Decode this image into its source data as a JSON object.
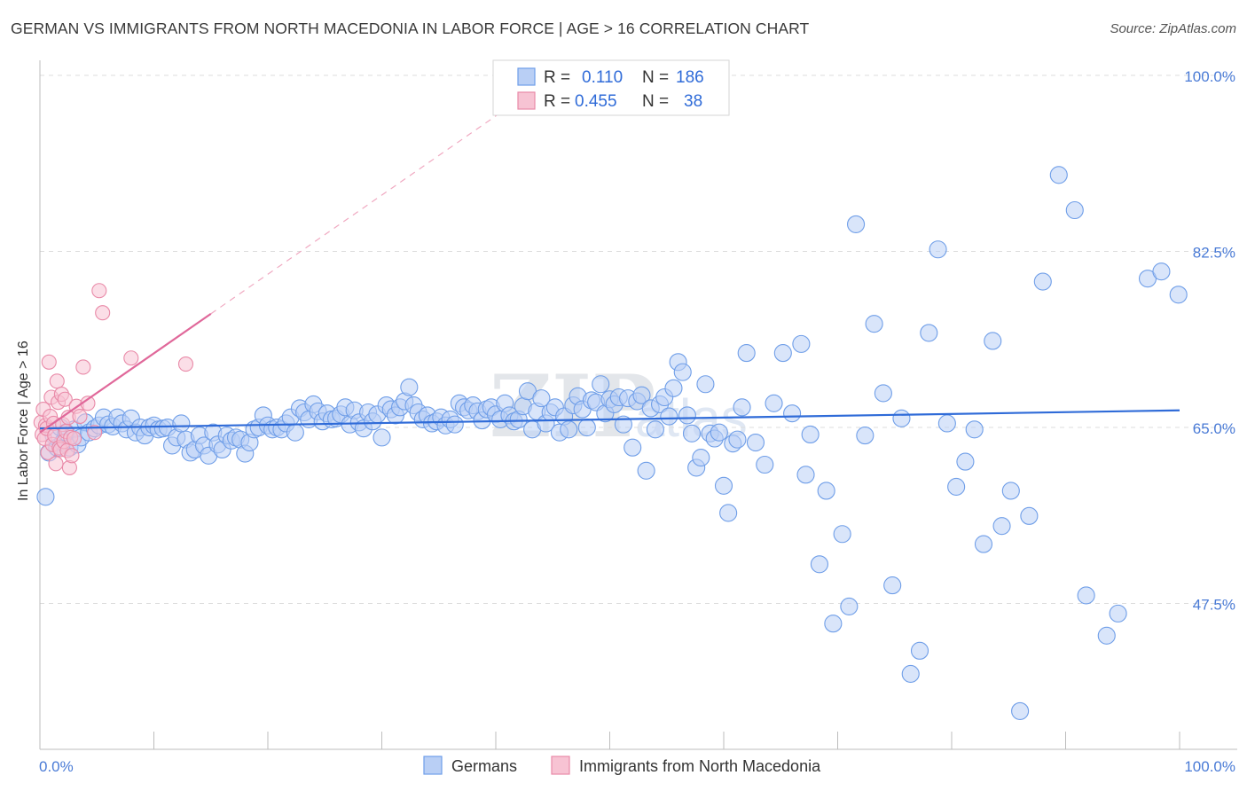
{
  "title": "GERMAN VS IMMIGRANTS FROM NORTH MACEDONIA IN LABOR FORCE | AGE > 16 CORRELATION CHART",
  "source": "Source: ZipAtlas.com",
  "watermark": {
    "zip": "ZIP",
    "atlas": "atlas"
  },
  "colors": {
    "blue": "#6f9ee8",
    "blue_fill": "#b9cff5",
    "blue_line": "#2f6bd8",
    "pink": "#e98aa8",
    "pink_fill": "#f7c3d3",
    "pink_line": "#e0689a"
  },
  "legend_top": {
    "rows": [
      {
        "r_label": "R =",
        "r_value": "0.110",
        "n_label": "N =",
        "n_value": "186"
      },
      {
        "r_label": "R =",
        "r_value": "0.455",
        "n_label": "N =",
        "n_value": "38"
      }
    ]
  },
  "legend_bottom": [
    "Germans",
    "Immigrants from North Macedonia"
  ],
  "chart_data": {
    "type": "scatter",
    "title": "GERMAN VS IMMIGRANTS FROM NORTH MACEDONIA IN LABOR FORCE | AGE > 16 CORRELATION CHART",
    "xlabel": "",
    "ylabel": "In Labor Force | Age > 16",
    "x_tick_labels": [
      "0.0%",
      "100.0%"
    ],
    "y_tick_labels": [
      "100.0%",
      "82.5%",
      "65.0%",
      "47.5%"
    ],
    "y_ticks": [
      100.0,
      82.5,
      65.0,
      47.5
    ],
    "xlim": [
      0,
      100
    ],
    "ylim": [
      33.0,
      101.5
    ],
    "grid": "horizontal dashed",
    "series": [
      {
        "name": "Germans",
        "R": 0.11,
        "N": 186,
        "trend": {
          "x": [
            0,
            100
          ],
          "y": [
            64.9,
            66.7
          ]
        },
        "points": [
          [
            0.5,
            58.1
          ],
          [
            0.8,
            62.5
          ],
          [
            1.2,
            64.2
          ],
          [
            1.5,
            63.0
          ],
          [
            1.8,
            65.0
          ],
          [
            2.0,
            63.5
          ],
          [
            2.3,
            64.5
          ],
          [
            2.6,
            63.0
          ],
          [
            3.0,
            64.8
          ],
          [
            3.3,
            63.3
          ],
          [
            3.6,
            64.0
          ],
          [
            4.0,
            65.5
          ],
          [
            4.3,
            64.5
          ],
          [
            4.8,
            64.9
          ],
          [
            5.2,
            65.2
          ],
          [
            5.6,
            66.0
          ],
          [
            6.0,
            65.3
          ],
          [
            6.4,
            65.1
          ],
          [
            6.8,
            66.0
          ],
          [
            7.2,
            65.4
          ],
          [
            7.6,
            64.8
          ],
          [
            8.0,
            65.9
          ],
          [
            8.4,
            64.5
          ],
          [
            8.8,
            65.0
          ],
          [
            9.2,
            64.2
          ],
          [
            9.6,
            65.0
          ],
          [
            10.0,
            65.2
          ],
          [
            10.4,
            64.8
          ],
          [
            10.8,
            64.9
          ],
          [
            11.2,
            65.0
          ],
          [
            11.6,
            63.2
          ],
          [
            12.0,
            64.0
          ],
          [
            12.4,
            65.4
          ],
          [
            12.8,
            63.8
          ],
          [
            13.2,
            62.5
          ],
          [
            13.6,
            62.8
          ],
          [
            14.0,
            64.2
          ],
          [
            14.4,
            63.2
          ],
          [
            14.8,
            62.2
          ],
          [
            15.2,
            64.5
          ],
          [
            15.6,
            63.3
          ],
          [
            16.0,
            62.8
          ],
          [
            16.4,
            64.2
          ],
          [
            16.8,
            63.7
          ],
          [
            17.2,
            64.0
          ],
          [
            17.6,
            63.8
          ],
          [
            18.0,
            62.4
          ],
          [
            18.4,
            63.5
          ],
          [
            18.8,
            64.8
          ],
          [
            19.2,
            65.0
          ],
          [
            19.6,
            66.2
          ],
          [
            20.0,
            65.2
          ],
          [
            20.4,
            64.8
          ],
          [
            20.8,
            65.0
          ],
          [
            21.2,
            64.8
          ],
          [
            21.6,
            65.4
          ],
          [
            22.0,
            66.0
          ],
          [
            22.4,
            64.5
          ],
          [
            22.8,
            66.9
          ],
          [
            23.2,
            66.5
          ],
          [
            23.6,
            65.8
          ],
          [
            24.0,
            67.3
          ],
          [
            24.4,
            66.6
          ],
          [
            24.8,
            65.6
          ],
          [
            25.2,
            66.4
          ],
          [
            25.6,
            65.8
          ],
          [
            26.0,
            65.9
          ],
          [
            26.4,
            66.3
          ],
          [
            26.8,
            67.0
          ],
          [
            27.2,
            65.3
          ],
          [
            27.6,
            66.7
          ],
          [
            28.0,
            65.5
          ],
          [
            28.4,
            64.9
          ],
          [
            28.8,
            66.5
          ],
          [
            29.2,
            65.6
          ],
          [
            29.6,
            66.3
          ],
          [
            30.0,
            64.0
          ],
          [
            30.4,
            67.2
          ],
          [
            30.8,
            66.8
          ],
          [
            31.2,
            66.2
          ],
          [
            31.6,
            67.0
          ],
          [
            32.0,
            67.6
          ],
          [
            32.4,
            69.0
          ],
          [
            32.8,
            67.2
          ],
          [
            33.2,
            66.5
          ],
          [
            33.6,
            65.8
          ],
          [
            34.0,
            66.2
          ],
          [
            34.4,
            65.4
          ],
          [
            34.8,
            65.6
          ],
          [
            35.2,
            66.0
          ],
          [
            35.6,
            65.2
          ],
          [
            36.0,
            65.8
          ],
          [
            36.4,
            65.3
          ],
          [
            36.8,
            67.4
          ],
          [
            37.2,
            67.0
          ],
          [
            37.6,
            66.7
          ],
          [
            38.0,
            67.2
          ],
          [
            38.4,
            66.6
          ],
          [
            38.8,
            65.7
          ],
          [
            39.2,
            66.8
          ],
          [
            39.6,
            67.0
          ],
          [
            40.0,
            66.3
          ],
          [
            40.4,
            65.8
          ],
          [
            40.8,
            67.4
          ],
          [
            41.2,
            66.2
          ],
          [
            41.6,
            65.6
          ],
          [
            42.0,
            65.8
          ],
          [
            42.4,
            67.1
          ],
          [
            42.8,
            68.6
          ],
          [
            43.2,
            64.8
          ],
          [
            43.6,
            66.6
          ],
          [
            44.0,
            67.9
          ],
          [
            44.4,
            65.4
          ],
          [
            44.8,
            66.5
          ],
          [
            45.2,
            67.0
          ],
          [
            45.6,
            64.5
          ],
          [
            46.0,
            66.1
          ],
          [
            46.4,
            64.8
          ],
          [
            46.8,
            67.2
          ],
          [
            47.2,
            68.1
          ],
          [
            47.6,
            66.8
          ],
          [
            48.0,
            65.0
          ],
          [
            48.4,
            67.7
          ],
          [
            48.8,
            67.5
          ],
          [
            49.2,
            69.3
          ],
          [
            49.6,
            66.4
          ],
          [
            50.0,
            67.8
          ],
          [
            50.4,
            67.3
          ],
          [
            50.8,
            68.0
          ],
          [
            51.2,
            65.3
          ],
          [
            51.6,
            67.9
          ],
          [
            52.0,
            63.0
          ],
          [
            52.4,
            67.6
          ],
          [
            52.8,
            68.2
          ],
          [
            53.2,
            60.7
          ],
          [
            53.6,
            66.9
          ],
          [
            54.0,
            64.8
          ],
          [
            54.4,
            67.3
          ],
          [
            54.8,
            68.0
          ],
          [
            55.2,
            66.1
          ],
          [
            55.6,
            68.9
          ],
          [
            56.0,
            71.5
          ],
          [
            56.4,
            70.5
          ],
          [
            56.8,
            66.2
          ],
          [
            57.2,
            64.4
          ],
          [
            57.6,
            61.0
          ],
          [
            58.0,
            62.0
          ],
          [
            58.4,
            69.3
          ],
          [
            58.8,
            64.4
          ],
          [
            59.2,
            63.9
          ],
          [
            59.6,
            64.5
          ],
          [
            60.0,
            59.2
          ],
          [
            60.4,
            56.5
          ],
          [
            60.8,
            63.4
          ],
          [
            61.2,
            63.8
          ],
          [
            61.6,
            67.0
          ],
          [
            62.0,
            72.4
          ],
          [
            62.8,
            63.5
          ],
          [
            63.6,
            61.3
          ],
          [
            64.4,
            67.4
          ],
          [
            65.2,
            72.4
          ],
          [
            66.0,
            66.4
          ],
          [
            66.8,
            73.3
          ],
          [
            67.2,
            60.3
          ],
          [
            67.6,
            64.3
          ],
          [
            68.4,
            51.4
          ],
          [
            69.0,
            58.7
          ],
          [
            69.6,
            45.5
          ],
          [
            70.4,
            54.4
          ],
          [
            71.0,
            47.2
          ],
          [
            71.6,
            85.2
          ],
          [
            72.4,
            64.2
          ],
          [
            73.2,
            75.3
          ],
          [
            74.0,
            68.4
          ],
          [
            74.8,
            49.3
          ],
          [
            75.6,
            65.9
          ],
          [
            76.4,
            40.5
          ],
          [
            77.2,
            42.8
          ],
          [
            78.0,
            74.4
          ],
          [
            78.8,
            82.7
          ],
          [
            79.6,
            65.4
          ],
          [
            80.4,
            59.1
          ],
          [
            81.2,
            61.6
          ],
          [
            82.0,
            64.8
          ],
          [
            82.8,
            53.4
          ],
          [
            83.6,
            73.6
          ],
          [
            84.4,
            55.2
          ],
          [
            85.2,
            58.7
          ],
          [
            86.0,
            36.8
          ],
          [
            86.8,
            56.2
          ],
          [
            88.0,
            79.5
          ],
          [
            89.4,
            90.1
          ],
          [
            90.8,
            86.6
          ],
          [
            91.8,
            48.3
          ],
          [
            93.6,
            44.3
          ],
          [
            94.6,
            46.5
          ],
          [
            97.2,
            79.8
          ],
          [
            98.4,
            80.5
          ],
          [
            99.9,
            78.2
          ]
        ]
      },
      {
        "name": "Immigrants from North Macedonia",
        "R": 0.455,
        "N": 38,
        "trend": {
          "x": [
            0,
            15
          ],
          "y": [
            64.5,
            76.3
          ]
        },
        "points": [
          [
            0.1,
            65.5
          ],
          [
            0.2,
            64.3
          ],
          [
            0.3,
            66.8
          ],
          [
            0.4,
            63.9
          ],
          [
            0.5,
            65.2
          ],
          [
            0.6,
            64.9
          ],
          [
            0.7,
            62.5
          ],
          [
            0.8,
            71.5
          ],
          [
            0.9,
            66.1
          ],
          [
            1.0,
            68.0
          ],
          [
            1.1,
            63.3
          ],
          [
            1.2,
            65.4
          ],
          [
            1.3,
            64.2
          ],
          [
            1.4,
            61.4
          ],
          [
            1.5,
            69.6
          ],
          [
            1.6,
            67.5
          ],
          [
            1.7,
            63.0
          ],
          [
            1.8,
            62.8
          ],
          [
            1.9,
            68.3
          ],
          [
            2.0,
            65.3
          ],
          [
            2.1,
            63.6
          ],
          [
            2.2,
            67.8
          ],
          [
            2.3,
            64.6
          ],
          [
            2.4,
            62.7
          ],
          [
            2.5,
            66.0
          ],
          [
            2.6,
            61.0
          ],
          [
            2.7,
            64.0
          ],
          [
            2.8,
            62.2
          ],
          [
            3.0,
            63.9
          ],
          [
            3.2,
            67.1
          ],
          [
            3.5,
            66.1
          ],
          [
            3.8,
            71.0
          ],
          [
            4.2,
            67.4
          ],
          [
            4.8,
            64.5
          ],
          [
            5.2,
            78.6
          ],
          [
            5.5,
            76.4
          ],
          [
            8.0,
            71.9
          ],
          [
            12.8,
            71.3
          ]
        ]
      }
    ]
  }
}
